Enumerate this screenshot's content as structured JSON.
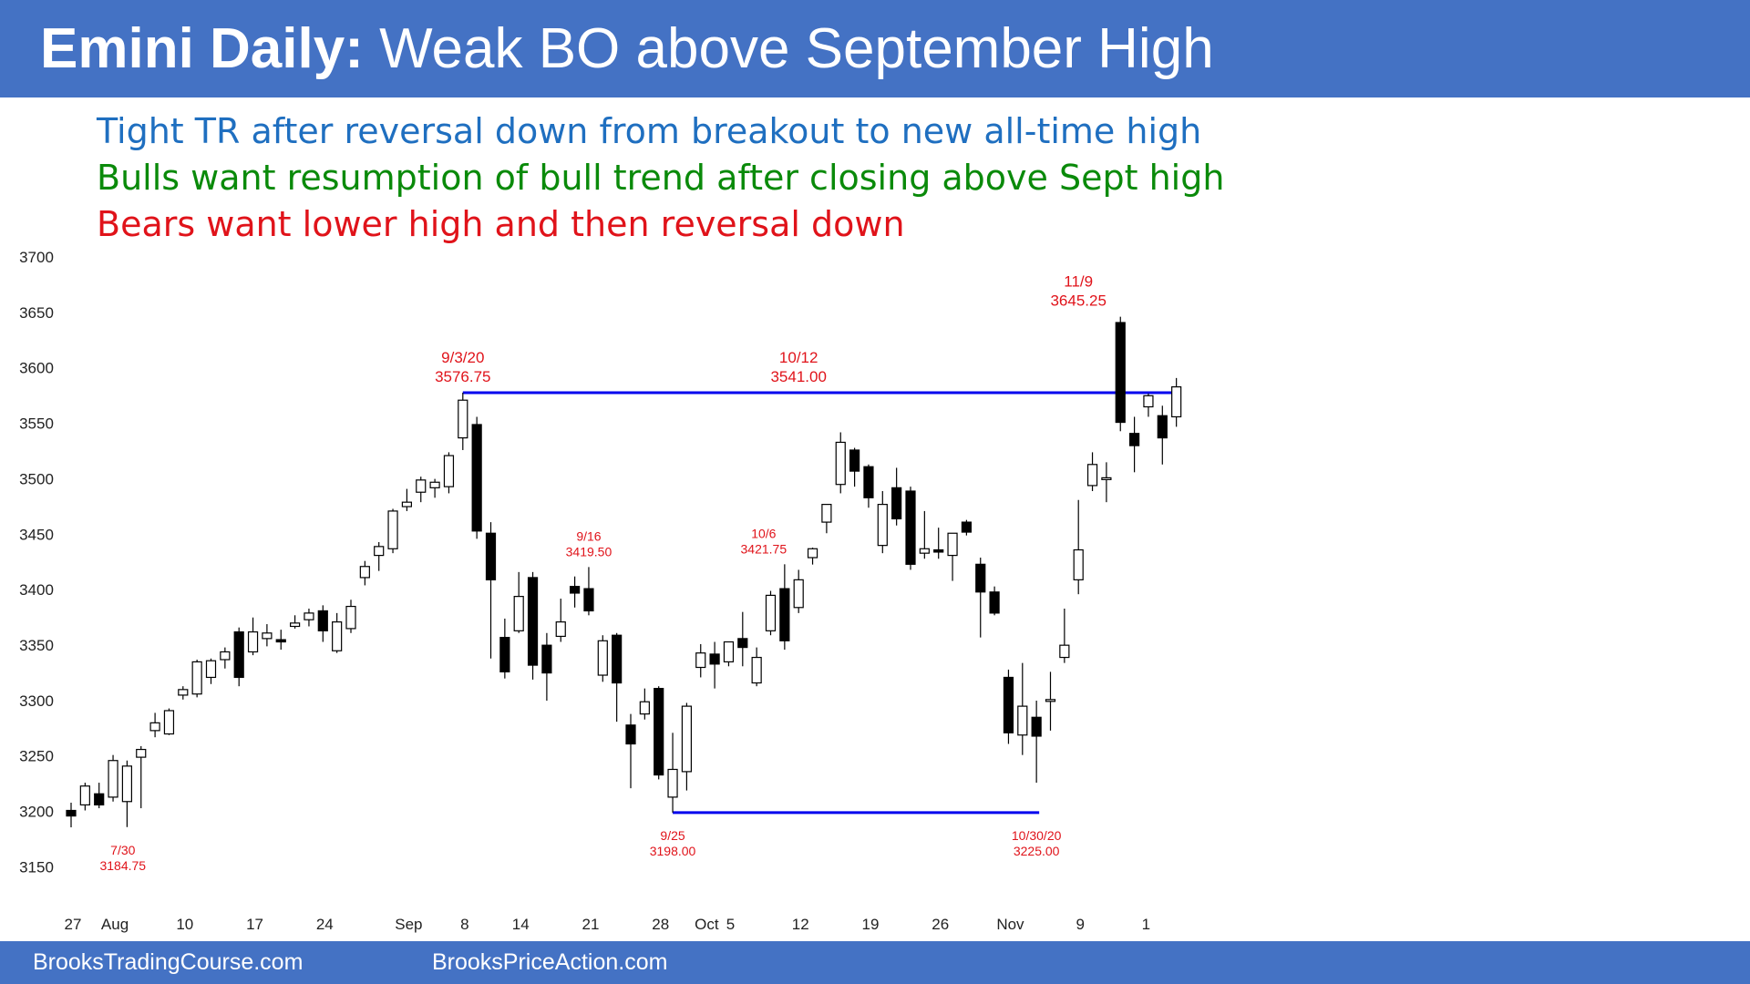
{
  "header": {
    "title_bold": "Emini Daily:",
    "title_rest": "Weak BO above September High"
  },
  "subtitles": [
    {
      "text": "Tight TR after reversal down from breakout to new all-time high",
      "color": "#1F6FC0"
    },
    {
      "text": "Bulls want resumption of bull trend after closing above Sept high",
      "color": "#0A8A0A"
    },
    {
      "text": "Bears want lower high and then reversal down",
      "color": "#E0131A"
    }
  ],
  "footer": {
    "left": "BrooksTradingCourse.com",
    "right": "BrooksPriceAction.com"
  },
  "colors": {
    "accent": "#4472C4",
    "line": "#0000EE",
    "annotation": "#E0131A",
    "bull": "#FFFFFF",
    "bear": "#000000"
  },
  "chart_data": {
    "type": "candlestick",
    "title": "",
    "ylim": [
      3130,
      3700
    ],
    "yticks": [
      3700,
      3650,
      3600,
      3550,
      3500,
      3450,
      3400,
      3350,
      3300,
      3250,
      3200,
      3150
    ],
    "grid": false,
    "x_ticks": [
      {
        "label": "27",
        "i": 0
      },
      {
        "label": "Aug",
        "i": 3
      },
      {
        "label": "10",
        "i": 8
      },
      {
        "label": "17",
        "i": 13
      },
      {
        "label": "24",
        "i": 18
      },
      {
        "label": "Sep",
        "i": 24
      },
      {
        "label": "8",
        "i": 28
      },
      {
        "label": "14",
        "i": 32
      },
      {
        "label": "21",
        "i": 37
      },
      {
        "label": "28",
        "i": 42
      },
      {
        "label": "Oct",
        "i": 45.3
      },
      {
        "label": "5",
        "i": 47
      },
      {
        "label": "12",
        "i": 52
      },
      {
        "label": "19",
        "i": 57
      },
      {
        "label": "26",
        "i": 62
      },
      {
        "label": "Nov",
        "i": 67
      },
      {
        "label": "9",
        "i": 72
      },
      {
        "label": "1",
        "i": 76.7
      }
    ],
    "candles": [
      {
        "o": 3200,
        "h": 3207,
        "l": 3184.75,
        "c": 3195
      },
      {
        "o": 3205,
        "h": 3225,
        "l": 3200,
        "c": 3222
      },
      {
        "o": 3215,
        "h": 3225,
        "l": 3202,
        "c": 3205
      },
      {
        "o": 3212,
        "h": 3250,
        "l": 3208,
        "c": 3245
      },
      {
        "o": 3208,
        "h": 3245,
        "l": 3185,
        "c": 3240
      },
      {
        "o": 3248,
        "h": 3258,
        "l": 3202,
        "c": 3255
      },
      {
        "o": 3272,
        "h": 3288,
        "l": 3266,
        "c": 3279
      },
      {
        "o": 3269,
        "h": 3292,
        "l": 3268,
        "c": 3290
      },
      {
        "o": 3304,
        "h": 3312,
        "l": 3300,
        "c": 3309
      },
      {
        "o": 3305,
        "h": 3336,
        "l": 3302,
        "c": 3334
      },
      {
        "o": 3320,
        "h": 3337,
        "l": 3314,
        "c": 3335
      },
      {
        "o": 3336,
        "h": 3347,
        "l": 3328,
        "c": 3343
      },
      {
        "o": 3361,
        "h": 3365,
        "l": 3312,
        "c": 3320
      },
      {
        "o": 3343,
        "h": 3374,
        "l": 3340,
        "c": 3361
      },
      {
        "o": 3355,
        "h": 3368,
        "l": 3348,
        "c": 3360
      },
      {
        "o": 3354,
        "h": 3363,
        "l": 3345,
        "c": 3352
      },
      {
        "o": 3366,
        "h": 3376,
        "l": 3364,
        "c": 3369
      },
      {
        "o": 3372,
        "h": 3382,
        "l": 3366,
        "c": 3378
      },
      {
        "o": 3380,
        "h": 3385,
        "l": 3352,
        "c": 3362
      },
      {
        "o": 3344,
        "h": 3378,
        "l": 3342,
        "c": 3370
      },
      {
        "o": 3364,
        "h": 3390,
        "l": 3360,
        "c": 3384
      },
      {
        "o": 3410,
        "h": 3425,
        "l": 3403,
        "c": 3420
      },
      {
        "o": 3430,
        "h": 3442,
        "l": 3416,
        "c": 3438
      },
      {
        "o": 3436,
        "h": 3472,
        "l": 3432,
        "c": 3470
      },
      {
        "o": 3474,
        "h": 3490,
        "l": 3470,
        "c": 3478
      },
      {
        "o": 3487,
        "h": 3501,
        "l": 3478,
        "c": 3498
      },
      {
        "o": 3491,
        "h": 3499,
        "l": 3482,
        "c": 3496
      },
      {
        "o": 3492,
        "h": 3523,
        "l": 3486,
        "c": 3520
      },
      {
        "o": 3536,
        "h": 3576.75,
        "l": 3525,
        "c": 3570
      },
      {
        "o": 3548,
        "h": 3555,
        "l": 3445,
        "c": 3452
      },
      {
        "o": 3450,
        "h": 3460,
        "l": 3337,
        "c": 3408
      },
      {
        "o": 3356,
        "h": 3373,
        "l": 3319,
        "c": 3325
      },
      {
        "o": 3362,
        "h": 3415,
        "l": 3360,
        "c": 3393
      },
      {
        "o": 3410,
        "h": 3415,
        "l": 3318,
        "c": 3331
      },
      {
        "o": 3349,
        "h": 3360,
        "l": 3299,
        "c": 3324
      },
      {
        "o": 3357,
        "h": 3391,
        "l": 3352,
        "c": 3370
      },
      {
        "o": 3402,
        "h": 3411,
        "l": 3383,
        "c": 3396
      },
      {
        "o": 3400,
        "h": 3419.5,
        "l": 3376,
        "c": 3380
      },
      {
        "o": 3322,
        "h": 3358,
        "l": 3316,
        "c": 3353
      },
      {
        "o": 3358,
        "h": 3360,
        "l": 3280,
        "c": 3315
      },
      {
        "o": 3277,
        "h": 3287,
        "l": 3220,
        "c": 3260
      },
      {
        "o": 3287,
        "h": 3310,
        "l": 3282,
        "c": 3298
      },
      {
        "o": 3310,
        "h": 3312,
        "l": 3228,
        "c": 3232
      },
      {
        "o": 3212,
        "h": 3270,
        "l": 3198,
        "c": 3237
      },
      {
        "o": 3235,
        "h": 3297,
        "l": 3218,
        "c": 3294
      },
      {
        "o": 3329,
        "h": 3350,
        "l": 3320,
        "c": 3342
      },
      {
        "o": 3341,
        "h": 3352,
        "l": 3310,
        "c": 3332
      },
      {
        "o": 3334,
        "h": 3352,
        "l": 3330,
        "c": 3352
      },
      {
        "o": 3355,
        "h": 3379,
        "l": 3330,
        "c": 3347
      },
      {
        "o": 3315,
        "h": 3347,
        "l": 3312,
        "c": 3338
      },
      {
        "o": 3362,
        "h": 3398,
        "l": 3358,
        "c": 3394
      },
      {
        "o": 3400,
        "h": 3422,
        "l": 3345,
        "c": 3353
      },
      {
        "o": 3383,
        "h": 3417,
        "l": 3378,
        "c": 3408
      },
      {
        "o": 3428,
        "h": 3437,
        "l": 3421.75,
        "c": 3436
      },
      {
        "o": 3460,
        "h": 3474,
        "l": 3450,
        "c": 3476
      },
      {
        "o": 3494,
        "h": 3541,
        "l": 3486,
        "c": 3532
      },
      {
        "o": 3525,
        "h": 3527,
        "l": 3492,
        "c": 3506
      },
      {
        "o": 3510,
        "h": 3512,
        "l": 3473,
        "c": 3482
      },
      {
        "o": 3439,
        "h": 3488,
        "l": 3432,
        "c": 3476
      },
      {
        "o": 3491,
        "h": 3509,
        "l": 3457,
        "c": 3463
      },
      {
        "o": 3488,
        "h": 3492,
        "l": 3417,
        "c": 3422
      },
      {
        "o": 3432,
        "h": 3470,
        "l": 3427,
        "c": 3436
      },
      {
        "o": 3435,
        "h": 3455,
        "l": 3427,
        "c": 3433
      },
      {
        "o": 3430,
        "h": 3450,
        "l": 3407,
        "c": 3450
      },
      {
        "o": 3460,
        "h": 3462,
        "l": 3448,
        "c": 3451
      },
      {
        "o": 3422,
        "h": 3428,
        "l": 3356,
        "c": 3397
      },
      {
        "o": 3397,
        "h": 3402,
        "l": 3376,
        "c": 3378
      },
      {
        "o": 3320,
        "h": 3327,
        "l": 3260,
        "c": 3270
      },
      {
        "o": 3268,
        "h": 3333,
        "l": 3250,
        "c": 3294
      },
      {
        "o": 3284,
        "h": 3299,
        "l": 3225,
        "c": 3267
      },
      {
        "o": 3300,
        "h": 3325,
        "l": 3272,
        "c": 3300
      },
      {
        "o": 3338,
        "h": 3382,
        "l": 3333,
        "c": 3349
      },
      {
        "o": 3408,
        "h": 3480,
        "l": 3395,
        "c": 3435
      },
      {
        "o": 3493,
        "h": 3523,
        "l": 3488,
        "c": 3512
      },
      {
        "o": 3499,
        "h": 3514,
        "l": 3478,
        "c": 3500
      },
      {
        "o": 3640,
        "h": 3645.25,
        "l": 3542,
        "c": 3550
      },
      {
        "o": 3540,
        "h": 3555,
        "l": 3505,
        "c": 3529
      },
      {
        "o": 3564,
        "h": 3576,
        "l": 3555,
        "c": 3574
      },
      {
        "o": 3556,
        "h": 3565,
        "l": 3512,
        "c": 3536
      },
      {
        "o": 3555,
        "h": 3590,
        "l": 3546,
        "c": 3582
      }
    ],
    "lines": [
      {
        "from_i": 28,
        "to_i": 79,
        "y": 3576.75
      },
      {
        "from_i": 43,
        "to_i": 69,
        "y": 3198
      }
    ],
    "annotations": [
      {
        "line1": "11/9",
        "line2": "3645.25",
        "i": 72,
        "at": 3645.25,
        "pos": "above",
        "size": "large"
      },
      {
        "line1": "9/3/20",
        "line2": "3576.75",
        "i": 28,
        "at": 3576.75,
        "pos": "above",
        "size": "large"
      },
      {
        "line1": "10/12",
        "line2": "3541.00",
        "i": 52,
        "at": 3576.75,
        "pos": "above",
        "size": "large"
      },
      {
        "line1": "9/16",
        "line2": "3419.50",
        "i": 37,
        "at": 3419.5,
        "pos": "above",
        "size": "small"
      },
      {
        "line1": "10/6",
        "line2": "3421.75",
        "i": 49.5,
        "at": 3421.75,
        "pos": "above",
        "size": "small"
      },
      {
        "line1": "7/30",
        "line2": "3184.75",
        "i": 3.7,
        "at": 3184.75,
        "pos": "below",
        "size": "small"
      },
      {
        "line1": "9/25",
        "line2": "3198.00",
        "i": 43,
        "at": 3198,
        "pos": "below",
        "size": "small"
      },
      {
        "line1": "10/30/20",
        "line2": "3225.00",
        "i": 69,
        "at": 3198,
        "pos": "below",
        "size": "small"
      }
    ]
  }
}
